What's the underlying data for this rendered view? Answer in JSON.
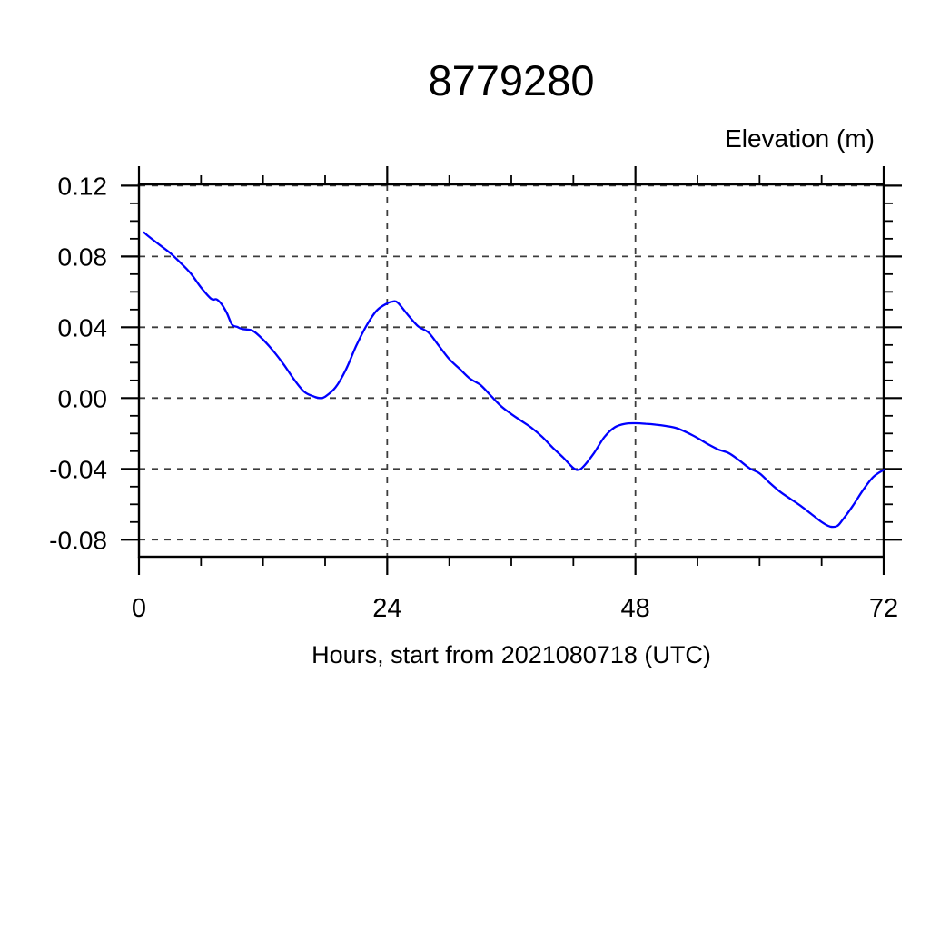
{
  "colors": {
    "background": "#ffffff",
    "line": "#0000ff",
    "frame": "#000000",
    "grid": "#3c3c3c",
    "text": "#000000"
  },
  "chart_data": {
    "type": "line",
    "title": "8779280",
    "right_axis_label": "Elevation (m)",
    "xlabel": "Hours, start from 2021080718 (UTC)",
    "ylabel": "",
    "xlim": [
      0,
      72
    ],
    "ylim": [
      -0.0896,
      0.1207
    ],
    "x_ticks": [
      0,
      24,
      48,
      72
    ],
    "x_tick_labels": [
      "0",
      "24",
      "48",
      "72"
    ],
    "x_minor_step": 6,
    "y_ticks": [
      0.12,
      0.08,
      0.04,
      0.0,
      -0.04,
      -0.08
    ],
    "y_tick_labels": [
      "0.12",
      "0.08",
      "0.04",
      "0.00",
      "-0.04",
      "-0.08"
    ],
    "y_minor_step": 0.01,
    "grid": "dashed",
    "legend": null,
    "series": [
      {
        "name": "elevation",
        "x": [
          0.5,
          1,
          2,
          3,
          4,
          5,
          6,
          7,
          7.5,
          8,
          8.5,
          9,
          9.5,
          10,
          11,
          12,
          13,
          14,
          15,
          16,
          17,
          17.5,
          18,
          19,
          20,
          21,
          22,
          23,
          24,
          24.5,
          25,
          26,
          27,
          28,
          29,
          30,
          31,
          32,
          33,
          34,
          35,
          36,
          37,
          38,
          39,
          40,
          41,
          42,
          42.5,
          43,
          44,
          45,
          46,
          47,
          48,
          49,
          50,
          51,
          52,
          53,
          54,
          55,
          56,
          57,
          58,
          59,
          60,
          61,
          62,
          63,
          64,
          65,
          66,
          66.8,
          67.5,
          68,
          69,
          70,
          71,
          72
        ],
        "y": [
          0.0935,
          0.091,
          0.0865,
          0.082,
          0.0765,
          0.0705,
          0.0625,
          0.056,
          0.0558,
          0.053,
          0.048,
          0.0415,
          0.0402,
          0.039,
          0.038,
          0.033,
          0.0265,
          0.019,
          0.0105,
          0.0035,
          0.0007,
          0.0,
          0.0008,
          0.006,
          0.016,
          0.0295,
          0.041,
          0.0495,
          0.0535,
          0.0545,
          0.054,
          0.047,
          0.0405,
          0.037,
          0.0295,
          0.022,
          0.0165,
          0.011,
          0.0075,
          0.0015,
          -0.0045,
          -0.009,
          -0.013,
          -0.017,
          -0.022,
          -0.028,
          -0.0335,
          -0.0395,
          -0.0405,
          -0.0385,
          -0.031,
          -0.022,
          -0.0165,
          -0.0145,
          -0.0142,
          -0.0145,
          -0.015,
          -0.0158,
          -0.017,
          -0.0195,
          -0.0225,
          -0.026,
          -0.029,
          -0.031,
          -0.035,
          -0.0395,
          -0.0425,
          -0.048,
          -0.053,
          -0.057,
          -0.061,
          -0.0655,
          -0.07,
          -0.0725,
          -0.0722,
          -0.069,
          -0.061,
          -0.052,
          -0.0445,
          -0.0405
        ]
      }
    ]
  }
}
